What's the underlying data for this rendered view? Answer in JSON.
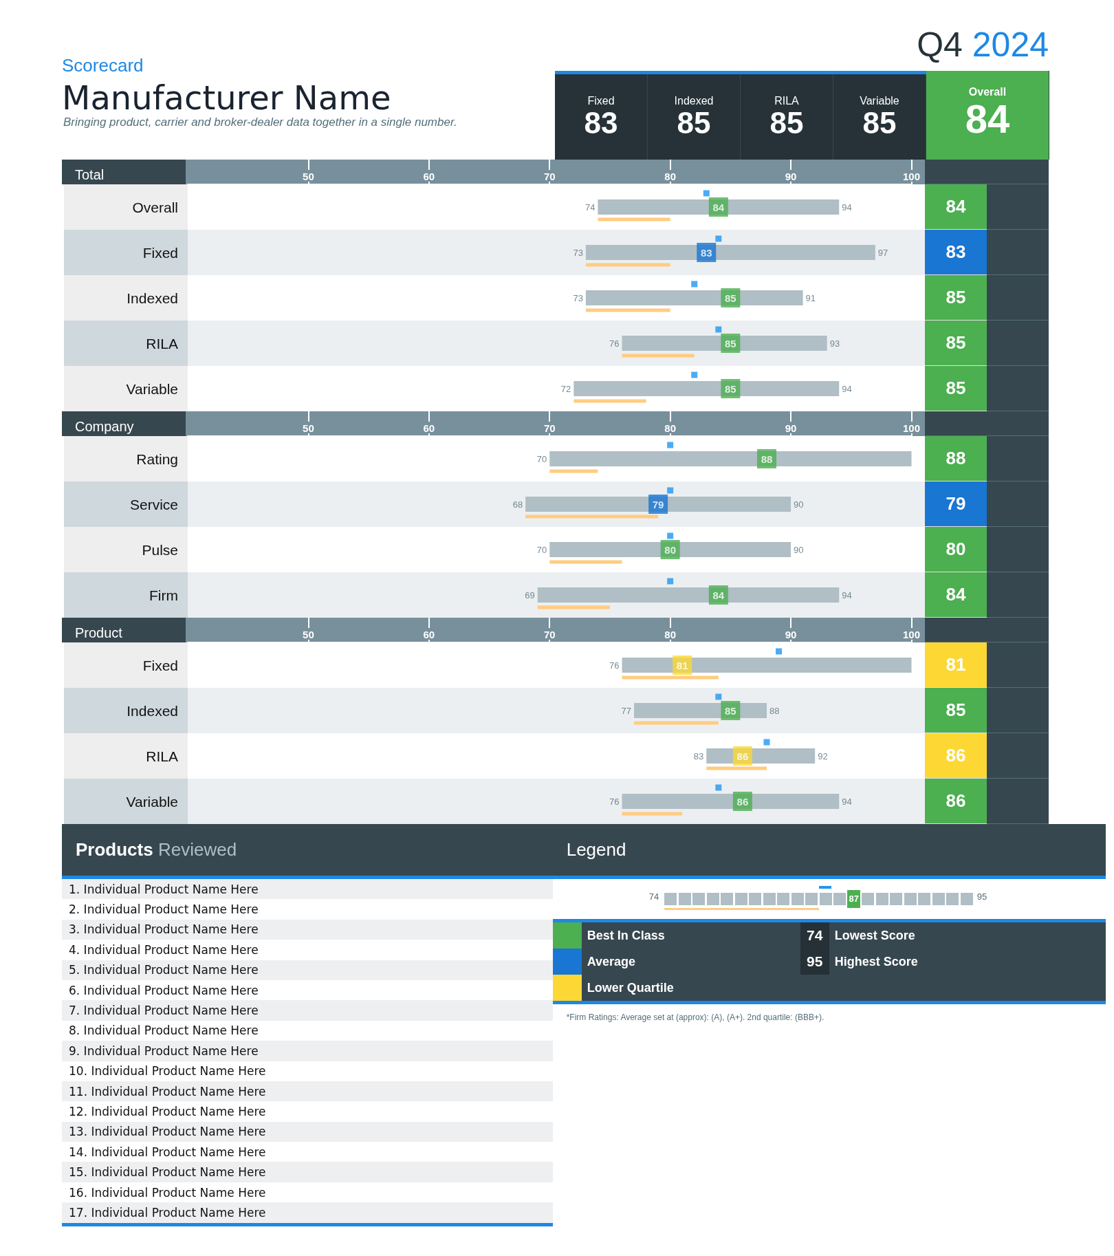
{
  "chart_data": [
    {
      "type": "other",
      "title": "Manufacturer Name",
      "subtitle": "Bringing product, carrier and broker-dealer data together in a single number.",
      "annotations": [
        "Scorecard",
        "Q4 2024"
      ],
      "categories": [
        "Fixed",
        "Indexed",
        "RILA",
        "Variable",
        "Overall"
      ],
      "values": [
        83,
        85,
        85,
        85,
        84
      ],
      "colors": [
        "#263238",
        "#263238",
        "#263238",
        "#263238",
        "#4caf50"
      ],
      "data_labels": true
    },
    {
      "type": "bar",
      "orientation": "horizontal",
      "title": "Total",
      "categories": [
        "Overall",
        "Fixed",
        "Indexed",
        "RILA",
        "Variable"
      ],
      "xlim": [
        40,
        100
      ],
      "xticks": [
        50,
        60,
        70,
        80,
        90,
        100
      ],
      "grid": false,
      "series": [
        {
          "type": "bar",
          "color": "#b0bec5",
          "base": [
            74,
            73,
            73,
            76,
            72
          ],
          "values": [
            20,
            24,
            18,
            17,
            22
          ]
        },
        {
          "type": "bar",
          "color": "#ffcc80",
          "base": [
            74,
            73,
            73,
            76,
            72
          ],
          "values": [
            6,
            7,
            7,
            6,
            6
          ]
        },
        {
          "type": "scatter",
          "marker": "square",
          "color": "#2196f3",
          "values": [
            83,
            84,
            82,
            84,
            82
          ]
        },
        {
          "type": "scatter",
          "marker": "square",
          "colors": [
            "#4caf50",
            "#1976d2",
            "#4caf50",
            "#4caf50",
            "#4caf50"
          ],
          "values": [
            84,
            83,
            85,
            85,
            85
          ],
          "data_labels": true,
          "value_labels": [
            "84",
            "83",
            "85",
            "85",
            "85"
          ]
        }
      ],
      "annotations": [
        {
          "text": "74",
          "x": 74,
          "y": "Overall"
        },
        {
          "text": "94",
          "x": 94,
          "y": "Overall"
        },
        {
          "text": "73",
          "x": 73,
          "y": "Fixed"
        },
        {
          "text": "97",
          "x": 97,
          "y": "Fixed"
        },
        {
          "text": "73",
          "x": 73,
          "y": "Indexed"
        },
        {
          "text": "91",
          "x": 91,
          "y": "Indexed"
        },
        {
          "text": "76",
          "x": 76,
          "y": "RILA"
        },
        {
          "text": "93",
          "x": 93,
          "y": "RILA"
        },
        {
          "text": "72",
          "x": 72,
          "y": "Variable"
        },
        {
          "text": "94",
          "x": 94,
          "y": "Variable"
        }
      ]
    },
    {
      "type": "bar",
      "orientation": "horizontal",
      "title": "Company",
      "categories": [
        "Rating",
        "Service",
        "Pulse",
        "Firm"
      ],
      "xlim": [
        40,
        100
      ],
      "xticks": [
        50,
        60,
        70,
        80,
        90,
        100
      ],
      "grid": false,
      "series": [
        {
          "type": "bar",
          "color": "#b0bec5",
          "base": [
            70,
            68,
            70,
            69
          ],
          "values": [
            30,
            22,
            20,
            25
          ]
        },
        {
          "type": "bar",
          "color": "#ffcc80",
          "base": [
            70,
            68,
            70,
            69
          ],
          "values": [
            4,
            11,
            6,
            6
          ]
        },
        {
          "type": "scatter",
          "marker": "square",
          "color": "#2196f3",
          "values": [
            80,
            80,
            80,
            80
          ]
        },
        {
          "type": "scatter",
          "marker": "square",
          "colors": [
            "#4caf50",
            "#1976d2",
            "#4caf50",
            "#4caf50"
          ],
          "values": [
            88,
            79,
            80,
            84
          ],
          "data_labels": true,
          "value_labels": [
            "88",
            "79",
            "80",
            "84"
          ]
        }
      ],
      "annotations": [
        {
          "text": "70",
          "x": 70,
          "y": "Rating"
        },
        {
          "text": "68",
          "x": 68,
          "y": "Service"
        },
        {
          "text": "90",
          "x": 90,
          "y": "Service"
        },
        {
          "text": "70",
          "x": 70,
          "y": "Pulse"
        },
        {
          "text": "90",
          "x": 90,
          "y": "Pulse"
        },
        {
          "text": "69",
          "x": 69,
          "y": "Firm"
        },
        {
          "text": "94",
          "x": 94,
          "y": "Firm"
        }
      ]
    },
    {
      "type": "bar",
      "orientation": "horizontal",
      "title": "Product",
      "categories": [
        "Fixed",
        "Indexed",
        "RILA",
        "Variable"
      ],
      "xlim": [
        40,
        100
      ],
      "xticks": [
        50,
        60,
        70,
        80,
        90,
        100
      ],
      "grid": false,
      "series": [
        {
          "type": "bar",
          "color": "#b0bec5",
          "base": [
            76,
            77,
            83,
            76
          ],
          "values": [
            24,
            11,
            9,
            18
          ]
        },
        {
          "type": "bar",
          "color": "#ffcc80",
          "base": [
            76,
            77,
            83,
            76
          ],
          "values": [
            8,
            7,
            5,
            5
          ]
        },
        {
          "type": "scatter",
          "marker": "square",
          "color": "#2196f3",
          "values": [
            89,
            84,
            88,
            84
          ]
        },
        {
          "type": "scatter",
          "marker": "square",
          "colors": [
            "#fdd835",
            "#4caf50",
            "#fdd835",
            "#4caf50"
          ],
          "values": [
            81,
            85,
            86,
            86
          ],
          "data_labels": true,
          "value_labels": [
            "81",
            "85",
            "86",
            "86"
          ]
        }
      ],
      "annotations": [
        {
          "text": "76",
          "x": 76,
          "y": "Fixed"
        },
        {
          "text": "77",
          "x": 77,
          "y": "Indexed"
        },
        {
          "text": "88",
          "x": 88,
          "y": "Indexed"
        },
        {
          "text": "83",
          "x": 83,
          "y": "RILA"
        },
        {
          "text": "92",
          "x": 92,
          "y": "RILA"
        },
        {
          "text": "76",
          "x": 76,
          "y": "Variable"
        },
        {
          "text": "94",
          "x": 94,
          "y": "Variable"
        }
      ]
    },
    {
      "type": "other",
      "title": "Products Reviewed",
      "annotations": [
        "1. Individual Product Name Here",
        "2. Individual Product Name Here",
        "3. Individual Product Name Here",
        "4. Individual Product Name Here",
        "5. Individual Product Name Here",
        "6. Individual Product Name Here",
        "7. Individual Product Name Here",
        "8. Individual Product Name Here",
        "9. Individual Product Name Here",
        "10. Individual Product Name Here",
        "11. Individual Product Name Here",
        "12. Individual Product Name Here",
        "13. Individual Product Name Here",
        "14. Individual Product Name Here",
        "15. Individual Product Name Here",
        "16. Individual Product Name Here",
        "17. Individual Product Name Here"
      ]
    },
    {
      "type": "other",
      "title": "Legend",
      "categories": [
        "Best In Class",
        "Average",
        "Lower Quartile",
        "Lowest Score",
        "Highest Score"
      ],
      "values": [
        null,
        null,
        null,
        74,
        95
      ],
      "data_labels": true,
      "colors": [
        "#4caf50",
        "#1976d2",
        "#fdd835",
        "#37474f",
        "#37474f"
      ],
      "annotations": [
        "74",
        "87",
        "95",
        "*Firm Ratings: Average set at (approx): (A), (A+). 2nd quartile: (BBB+)."
      ]
    }
  ]
}
